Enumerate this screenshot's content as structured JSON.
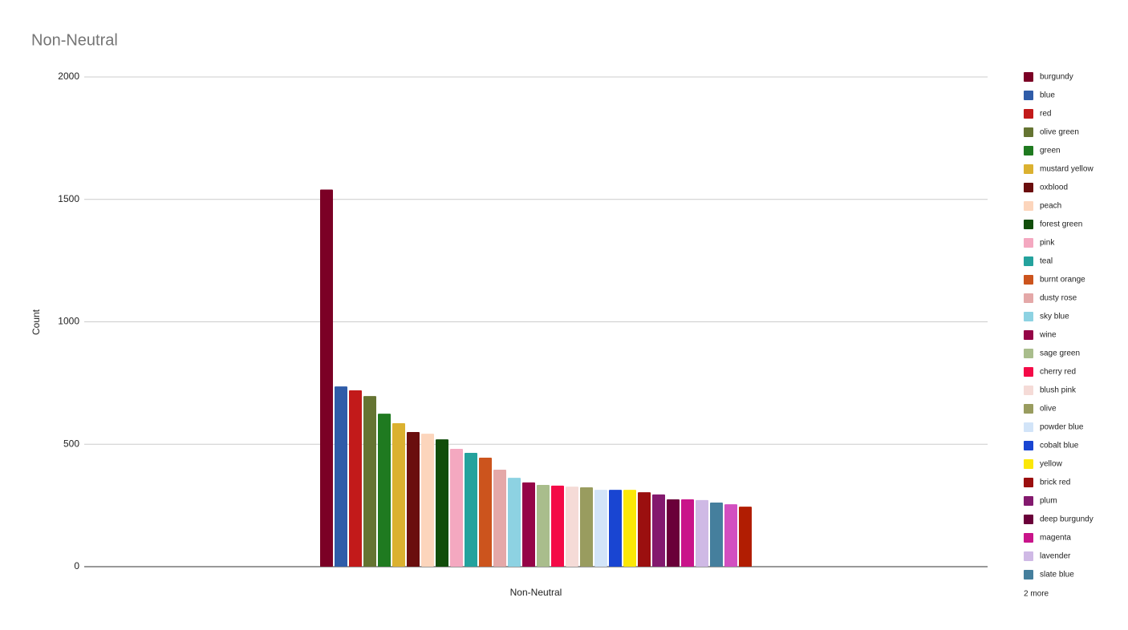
{
  "chart_data": {
    "type": "bar",
    "title": "Non-Neutral",
    "y_label": "Count",
    "categories": [
      "Non-Neutral"
    ],
    "ylim": [
      0,
      2000
    ],
    "yticks": [
      0,
      500,
      1000,
      1500,
      2000
    ],
    "grid": true,
    "legend_position": "right",
    "legend_more": "2 more",
    "series": [
      {
        "name": "burgundy",
        "color": "#7b0025",
        "values": [
          1540
        ]
      },
      {
        "name": "blue",
        "color": "#2f5ca8",
        "values": [
          736
        ]
      },
      {
        "name": "red",
        "color": "#c21a1a",
        "values": [
          720
        ]
      },
      {
        "name": "olive green",
        "color": "#657432",
        "values": [
          697
        ]
      },
      {
        "name": "green",
        "color": "#1f7a20",
        "values": [
          625
        ]
      },
      {
        "name": "mustard yellow",
        "color": "#dbb130",
        "values": [
          586
        ]
      },
      {
        "name": "oxblood",
        "color": "#6a0e0e",
        "values": [
          550
        ]
      },
      {
        "name": "peach",
        "color": "#fcd5bc",
        "values": [
          543
        ]
      },
      {
        "name": "forest green",
        "color": "#114d0a",
        "values": [
          520
        ]
      },
      {
        "name": "pink",
        "color": "#f4a8c0",
        "values": [
          481
        ]
      },
      {
        "name": "teal",
        "color": "#24a29d",
        "values": [
          465
        ]
      },
      {
        "name": "burnt orange",
        "color": "#cc541d",
        "values": [
          445
        ]
      },
      {
        "name": "dusty rose",
        "color": "#e4a8a8",
        "values": [
          396
        ]
      },
      {
        "name": "sky blue",
        "color": "#8dd2e2",
        "values": [
          363
        ]
      },
      {
        "name": "wine",
        "color": "#950447",
        "values": [
          344
        ]
      },
      {
        "name": "sage green",
        "color": "#a9bd8c",
        "values": [
          334
        ]
      },
      {
        "name": "cherry red",
        "color": "#f40a47",
        "values": [
          331
        ]
      },
      {
        "name": "blush pink",
        "color": "#f5dbd7",
        "values": [
          327
        ]
      },
      {
        "name": "olive",
        "color": "#999c5f",
        "values": [
          324
        ]
      },
      {
        "name": "powder blue",
        "color": "#d2e4f8",
        "values": [
          314
        ]
      },
      {
        "name": "cobalt blue",
        "color": "#1945d2",
        "values": [
          314
        ]
      },
      {
        "name": "yellow",
        "color": "#fbe708",
        "values": [
          314
        ]
      },
      {
        "name": "brick red",
        "color": "#9b0f0f",
        "values": [
          304
        ]
      },
      {
        "name": "plum",
        "color": "#83196e",
        "values": [
          295
        ]
      },
      {
        "name": "deep burgundy",
        "color": "#6a0039",
        "values": [
          275
        ]
      },
      {
        "name": "magenta",
        "color": "#c9148a",
        "values": [
          275
        ]
      },
      {
        "name": "lavender",
        "color": "#cfb9e5",
        "values": [
          272
        ]
      },
      {
        "name": "slate blue",
        "color": "#457f9d",
        "values": [
          262
        ]
      },
      {
        "name": null,
        "color": "#d24fc0",
        "values": [
          255
        ]
      },
      {
        "name": null,
        "color": "#b11d02",
        "values": [
          245
        ]
      }
    ]
  }
}
